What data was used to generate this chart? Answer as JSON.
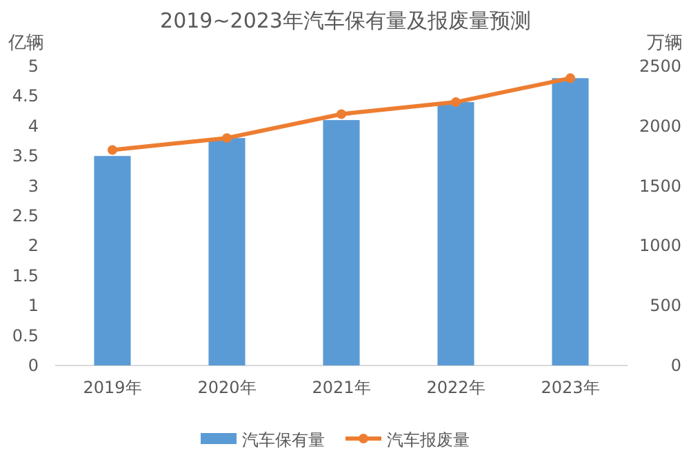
{
  "chart_data": {
    "type": "bar",
    "title": "2019~2023年汽车保有量及报废量预测",
    "ylabel": "亿辆",
    "y2label": "万辆",
    "categories": [
      "2019年",
      "2020年",
      "2021年",
      "2022年",
      "2023年"
    ],
    "series": [
      {
        "name": "汽车保有量",
        "color": "#5b9bd5",
        "values": [
          3.5,
          3.8,
          4.1,
          4.4,
          4.8
        ]
      },
      {
        "name": "汽车报废量",
        "type": "line",
        "axis": "y2",
        "color": "#ed7d31",
        "values": [
          1800,
          1900,
          2100,
          2200,
          2400
        ]
      }
    ],
    "marker": "circle",
    "legend": "bottom",
    "ylim": [
      0,
      5
    ],
    "yticks": [
      0,
      0.5,
      1,
      1.5,
      2,
      2.5,
      3,
      3.5,
      4,
      4.5,
      5
    ],
    "y2lim": [
      0,
      2500
    ],
    "y2ticks": [
      0,
      500,
      1000,
      1500,
      2000,
      2500
    ]
  }
}
